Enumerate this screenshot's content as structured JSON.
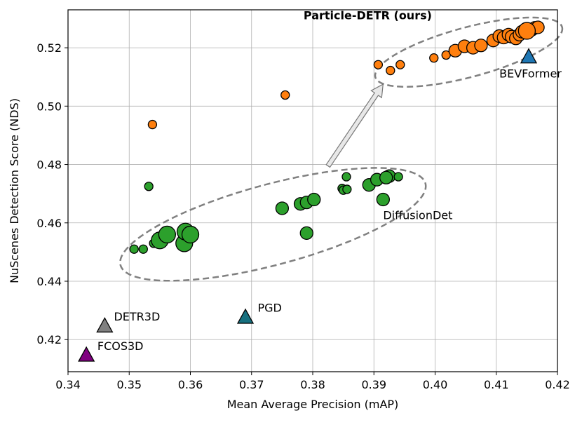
{
  "chart_data": {
    "type": "scatter",
    "title": "",
    "xlabel": "Mean Average Precision (mAP)",
    "ylabel": "NuScenes Detection Score (NDS)",
    "xlim": [
      0.34,
      0.42
    ],
    "ylim": [
      0.409,
      0.533
    ],
    "xticks": [
      "0.34",
      "0.35",
      "0.36",
      "0.37",
      "0.38",
      "0.39",
      "0.40",
      "0.41",
      "0.42"
    ],
    "yticks": [
      "0.42",
      "0.44",
      "0.46",
      "0.48",
      "0.50",
      "0.52"
    ],
    "grid": true,
    "colors": {
      "diffusiondet": "#2ca02c",
      "particle": "#ff7f0e",
      "bevformer": "#1f77b4",
      "pgd": "#17707f",
      "detr3d": "#808080",
      "fcos3d": "#800080"
    },
    "series": [
      {
        "name": "DiffusionDet",
        "marker": "circle",
        "points": [
          {
            "x": 0.3508,
            "y": 0.451,
            "s": 1
          },
          {
            "x": 0.3523,
            "y": 0.451,
            "s": 1
          },
          {
            "x": 0.354,
            "y": 0.453,
            "s": 1
          },
          {
            "x": 0.3532,
            "y": 0.4725,
            "s": 1
          },
          {
            "x": 0.355,
            "y": 0.454,
            "s": 3
          },
          {
            "x": 0.3562,
            "y": 0.456,
            "s": 3
          },
          {
            "x": 0.359,
            "y": 0.453,
            "s": 3
          },
          {
            "x": 0.3592,
            "y": 0.457,
            "s": 3
          },
          {
            "x": 0.36,
            "y": 0.456,
            "s": 3
          },
          {
            "x": 0.375,
            "y": 0.465,
            "s": 2
          },
          {
            "x": 0.378,
            "y": 0.4665,
            "s": 2
          },
          {
            "x": 0.379,
            "y": 0.467,
            "s": 2
          },
          {
            "x": 0.3802,
            "y": 0.468,
            "s": 2
          },
          {
            "x": 0.379,
            "y": 0.4565,
            "s": 2
          },
          {
            "x": 0.3848,
            "y": 0.4718,
            "s": 1
          },
          {
            "x": 0.385,
            "y": 0.4712,
            "s": 1
          },
          {
            "x": 0.3856,
            "y": 0.4715,
            "s": 1
          },
          {
            "x": 0.3855,
            "y": 0.4758,
            "s": 1
          },
          {
            "x": 0.3892,
            "y": 0.473,
            "s": 2
          },
          {
            "x": 0.3905,
            "y": 0.4748,
            "s": 2
          },
          {
            "x": 0.3915,
            "y": 0.468,
            "s": 2
          },
          {
            "x": 0.3925,
            "y": 0.476,
            "s": 2
          },
          {
            "x": 0.392,
            "y": 0.4755,
            "s": 2
          },
          {
            "x": 0.394,
            "y": 0.4758,
            "s": 1
          }
        ]
      },
      {
        "name": "Particle-DETR (ours)",
        "marker": "circle",
        "points": [
          {
            "x": 0.3538,
            "y": 0.4937,
            "s": 1
          },
          {
            "x": 0.3755,
            "y": 0.5038,
            "s": 1
          },
          {
            "x": 0.3907,
            "y": 0.5142,
            "s": 1
          },
          {
            "x": 0.3927,
            "y": 0.5122,
            "s": 1
          },
          {
            "x": 0.3943,
            "y": 0.5142,
            "s": 1
          },
          {
            "x": 0.3998,
            "y": 0.5165,
            "s": 1
          },
          {
            "x": 0.4018,
            "y": 0.5175,
            "s": 1
          },
          {
            "x": 0.4033,
            "y": 0.519,
            "s": 2
          },
          {
            "x": 0.4048,
            "y": 0.5205,
            "s": 2
          },
          {
            "x": 0.4062,
            "y": 0.52,
            "s": 2
          },
          {
            "x": 0.4075,
            "y": 0.5208,
            "s": 2
          },
          {
            "x": 0.4095,
            "y": 0.5225,
            "s": 2
          },
          {
            "x": 0.4105,
            "y": 0.524,
            "s": 2
          },
          {
            "x": 0.4112,
            "y": 0.5235,
            "s": 2
          },
          {
            "x": 0.412,
            "y": 0.5245,
            "s": 2
          },
          {
            "x": 0.4125,
            "y": 0.5238,
            "s": 2
          },
          {
            "x": 0.4132,
            "y": 0.5232,
            "s": 2
          },
          {
            "x": 0.4138,
            "y": 0.5245,
            "s": 2
          },
          {
            "x": 0.4142,
            "y": 0.5255,
            "s": 2
          },
          {
            "x": 0.4148,
            "y": 0.526,
            "s": 2
          },
          {
            "x": 0.4153,
            "y": 0.5258,
            "s": 2
          },
          {
            "x": 0.4158,
            "y": 0.5262,
            "s": 2
          },
          {
            "x": 0.4163,
            "y": 0.5268,
            "s": 2
          },
          {
            "x": 0.4168,
            "y": 0.527,
            "s": 2
          },
          {
            "x": 0.415,
            "y": 0.5258,
            "s": 3
          }
        ]
      },
      {
        "name": "BEVFormer",
        "marker": "triangle",
        "points": [
          {
            "x": 0.4153,
            "y": 0.5172
          }
        ]
      },
      {
        "name": "PGD",
        "marker": "triangle",
        "points": [
          {
            "x": 0.369,
            "y": 0.428
          }
        ]
      },
      {
        "name": "DETR3D",
        "marker": "triangle",
        "points": [
          {
            "x": 0.346,
            "y": 0.425
          }
        ]
      },
      {
        "name": "FCOS3D",
        "marker": "triangle",
        "points": [
          {
            "x": 0.343,
            "y": 0.415
          }
        ]
      }
    ],
    "annotations": [
      {
        "text": "Particle-DETR (ours)",
        "x": 0.3785,
        "y": 0.5297,
        "bold": true
      },
      {
        "text": "BEVFormer",
        "x": 0.4105,
        "y": 0.5098,
        "bold": false
      },
      {
        "text": "DiffusionDet",
        "x": 0.3915,
        "y": 0.4613,
        "bold": false
      },
      {
        "text": "PGD",
        "x": 0.371,
        "y": 0.4295,
        "bold": false
      },
      {
        "text": "DETR3D",
        "x": 0.3475,
        "y": 0.4265,
        "bold": false
      },
      {
        "text": "FCOS3D",
        "x": 0.3448,
        "y": 0.4165,
        "bold": false
      }
    ],
    "ellipses": [
      {
        "group": "DiffusionDet",
        "cx": 0.3735,
        "cy": 0.4595,
        "rx_data": 0.0258,
        "ry_data": 0.0138,
        "angle_deg": -15
      },
      {
        "group": "Particle-DETR (ours)",
        "cx": 0.4055,
        "cy": 0.5185,
        "rx_data": 0.0158,
        "ry_data": 0.0085,
        "angle_deg": -15
      }
    ],
    "arrow": {
      "from": [
        0.3825,
        0.4795
      ],
      "to": [
        0.3915,
        0.5075
      ]
    }
  }
}
